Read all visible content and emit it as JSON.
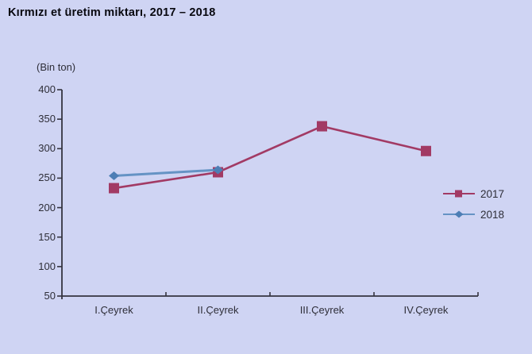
{
  "colors": {
    "background": "#cfd4f3",
    "title_text": "#08080f",
    "axis_text": "#2e2e38",
    "axis_line": "#34343f",
    "series_2017": "#a23a64",
    "series_2018_line": "#6593c4",
    "series_2018_marker": "#4d7eb5"
  },
  "chart_data": {
    "type": "line",
    "title": "Kırmızı et üretim miktarı, 2017 – 2018",
    "unit_label": "(Bin ton)",
    "categories": [
      "I.Çeyrek",
      "II.Çeyrek",
      "III.Çeyrek",
      "IV.Çeyrek"
    ],
    "series": [
      {
        "name": "2017",
        "marker": "square",
        "values": [
          233,
          260,
          338,
          296
        ]
      },
      {
        "name": "2018",
        "marker": "diamond",
        "values": [
          254,
          264,
          null,
          null
        ]
      }
    ],
    "ylim": [
      50,
      400
    ],
    "ytick_step": 50,
    "yticks": [
      50,
      100,
      150,
      200,
      250,
      300,
      350,
      400
    ],
    "grid": false,
    "legend_position": "right",
    "legend": [
      "2017",
      "2018"
    ]
  }
}
